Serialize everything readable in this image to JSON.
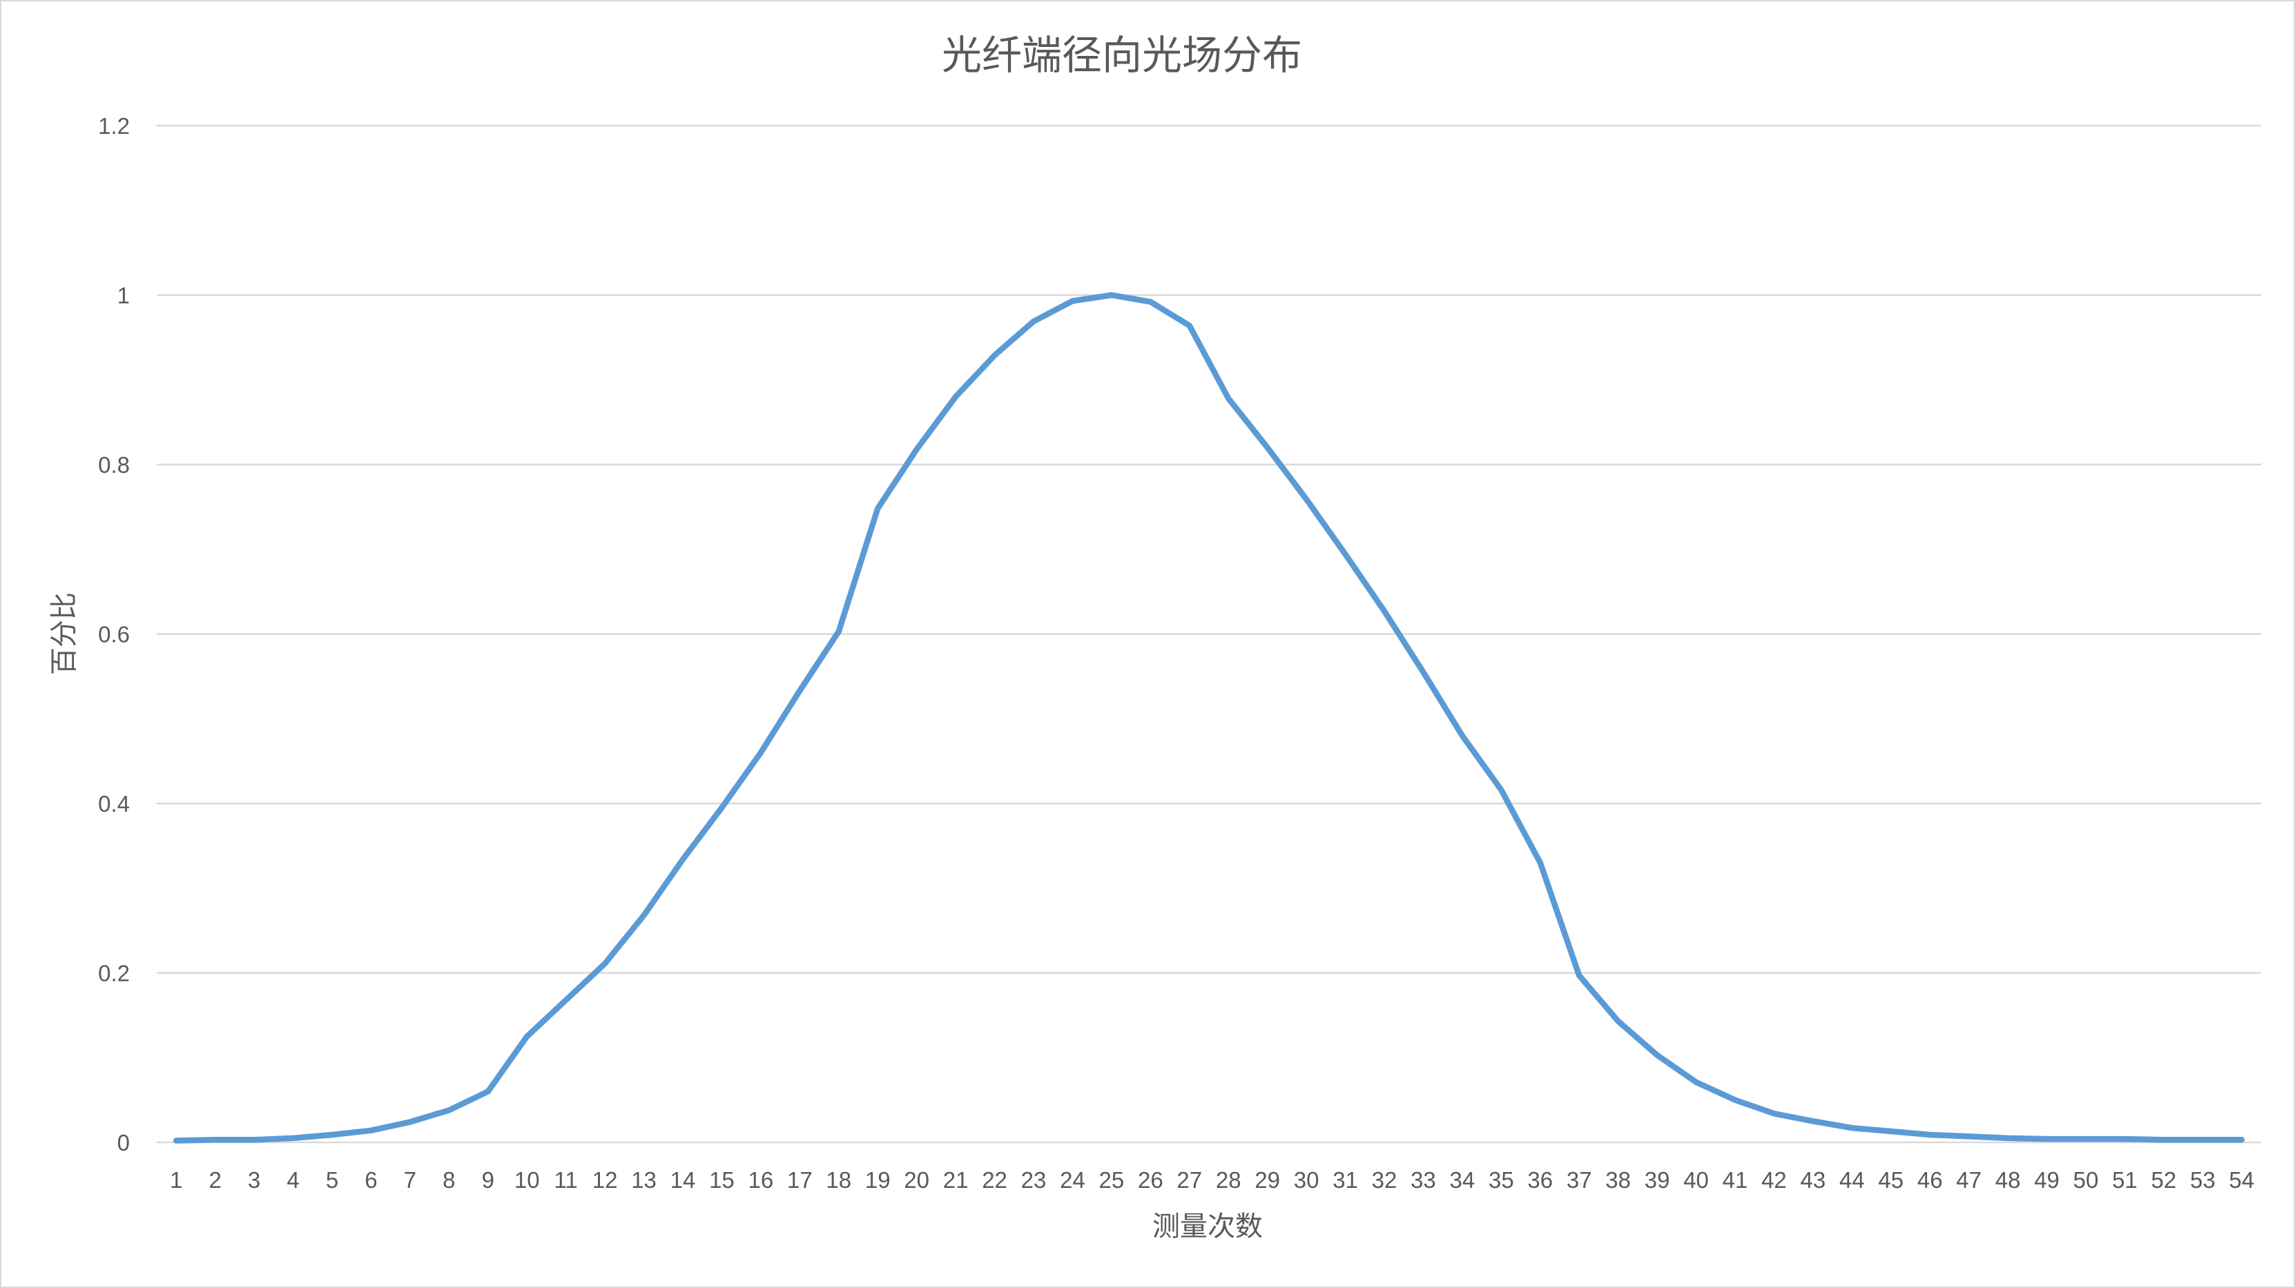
{
  "chart_data": {
    "type": "line",
    "title": "光纤端径向光场分布",
    "xlabel": "测量次数",
    "ylabel": "百分比",
    "ylim": [
      0,
      1.2
    ],
    "yticks": [
      "0",
      "0.2",
      "0.4",
      "0.6",
      "0.8",
      "1",
      "1.2"
    ],
    "grid": true,
    "legend": "none",
    "categories": [
      "1",
      "2",
      "3",
      "4",
      "5",
      "6",
      "7",
      "8",
      "9",
      "10",
      "11",
      "12",
      "13",
      "14",
      "15",
      "16",
      "17",
      "18",
      "19",
      "20",
      "21",
      "22",
      "23",
      "24",
      "25",
      "26",
      "27",
      "28",
      "29",
      "30",
      "31",
      "32",
      "33",
      "34",
      "35",
      "36",
      "37",
      "38",
      "39",
      "40",
      "41",
      "42",
      "43",
      "44",
      "45",
      "46",
      "47",
      "48",
      "49",
      "50",
      "51",
      "52",
      "53",
      "54"
    ],
    "series": [
      {
        "color": "#5b9bd5",
        "values": [
          0.002,
          0.003,
          0.003,
          0.005,
          0.009,
          0.014,
          0.024,
          0.038,
          0.06,
          0.125,
          0.168,
          0.211,
          0.268,
          0.334,
          0.395,
          0.46,
          0.533,
          0.603,
          0.748,
          0.818,
          0.88,
          0.929,
          0.969,
          0.993,
          1.0,
          0.992,
          0.964,
          0.878,
          0.82,
          0.759,
          0.694,
          0.627,
          0.555,
          0.48,
          0.416,
          0.33,
          0.197,
          0.143,
          0.103,
          0.071,
          0.05,
          0.034,
          0.025,
          0.017,
          0.013,
          0.009,
          0.007,
          0.005,
          0.004,
          0.004,
          0.004,
          0.003,
          0.003,
          0.003
        ]
      }
    ]
  }
}
